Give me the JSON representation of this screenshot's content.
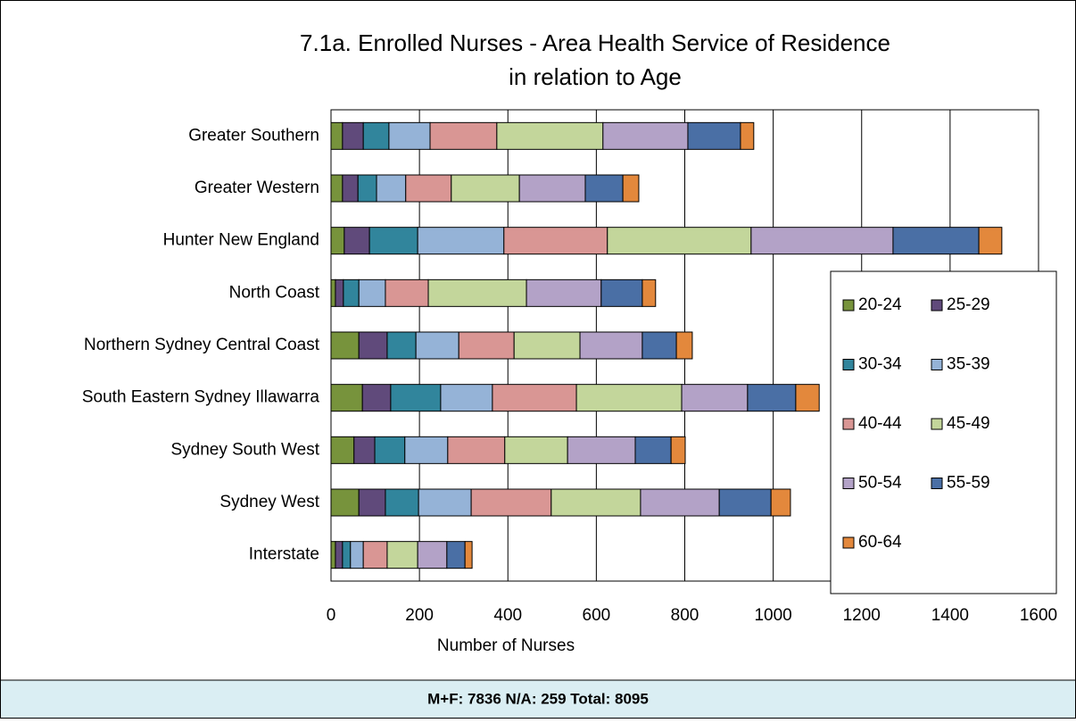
{
  "chart_data": {
    "type": "stacked_barh",
    "title": [
      "7.1a. Enrolled Nurses - Area Health Service of Residence",
      "in relation to Age"
    ],
    "x_label": "Number of Nurses",
    "categories": [
      "Greater Southern",
      "Greater Western",
      "Hunter New England",
      "North Coast",
      "Northern Sydney Central Coast",
      "South Eastern Sydney Illawarra",
      "Sydney South West",
      "Sydney West",
      "Interstate"
    ],
    "series": [
      {
        "name": "20-24",
        "color": "#77933c",
        "values": [
          26,
          26,
          30,
          10,
          63,
          71,
          52,
          63,
          10
        ]
      },
      {
        "name": "25-29",
        "color": "#604a7b",
        "values": [
          47,
          35,
          57,
          18,
          64,
          64,
          47,
          60,
          16
        ]
      },
      {
        "name": "30-34",
        "color": "#31859c",
        "values": [
          58,
          42,
          109,
          35,
          65,
          113,
          68,
          75,
          18
        ]
      },
      {
        "name": "35-39",
        "color": "#95b3d7",
        "values": [
          93,
          66,
          195,
          60,
          97,
          117,
          97,
          119,
          29
        ]
      },
      {
        "name": "40-44",
        "color": "#d99694",
        "values": [
          151,
          103,
          234,
          97,
          125,
          190,
          129,
          181,
          54
        ]
      },
      {
        "name": "45-49",
        "color": "#c3d69b",
        "values": [
          240,
          154,
          325,
          222,
          149,
          238,
          142,
          202,
          69
        ]
      },
      {
        "name": "50-54",
        "color": "#b3a2c7",
        "values": [
          192,
          149,
          321,
          169,
          141,
          149,
          153,
          178,
          66
        ]
      },
      {
        "name": "55-59",
        "color": "#4a6fa5",
        "values": [
          119,
          85,
          194,
          93,
          77,
          109,
          81,
          117,
          41
        ]
      },
      {
        "name": "60-64",
        "color": "#e3883c",
        "values": [
          30,
          36,
          52,
          30,
          36,
          53,
          32,
          44,
          16
        ]
      }
    ],
    "xlim": [
      0,
      1600
    ],
    "xticks": [
      0,
      200,
      400,
      600,
      800,
      1000,
      1200,
      1400,
      1600
    ],
    "grid": true,
    "legend": "right"
  },
  "footer": "M+F: 7836  N/A: 259   Total: 8095"
}
